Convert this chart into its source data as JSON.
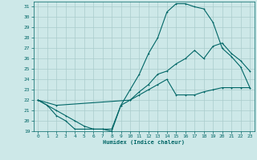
{
  "xlabel": "Humidex (Indice chaleur)",
  "background_color": "#cde8e8",
  "grid_color": "#aacccc",
  "line_color": "#006666",
  "xlim": [
    -0.5,
    23.5
  ],
  "ylim": [
    19,
    31.5
  ],
  "yticks": [
    19,
    20,
    21,
    22,
    23,
    24,
    25,
    26,
    27,
    28,
    29,
    30,
    31
  ],
  "xticks": [
    0,
    1,
    2,
    3,
    4,
    5,
    6,
    7,
    8,
    9,
    10,
    11,
    12,
    13,
    14,
    15,
    16,
    17,
    18,
    19,
    20,
    21,
    22,
    23
  ],
  "curve1_x": [
    0,
    1,
    2,
    3,
    4,
    5,
    6,
    7,
    8,
    9,
    10,
    11,
    12,
    13,
    14,
    15,
    16,
    17,
    18,
    19,
    20,
    21,
    22,
    23
  ],
  "curve1_y": [
    22.0,
    21.5,
    20.5,
    20.0,
    19.2,
    19.2,
    19.2,
    19.2,
    19.0,
    21.5,
    22.0,
    22.5,
    23.0,
    23.5,
    24.0,
    22.5,
    22.5,
    22.5,
    22.8,
    23.0,
    23.2,
    23.2,
    23.2,
    23.2
  ],
  "curve2_x": [
    0,
    1,
    2,
    3,
    4,
    5,
    6,
    7,
    8,
    9,
    10,
    11,
    12,
    13,
    14,
    15,
    16,
    17,
    18,
    19,
    20,
    21,
    22,
    23
  ],
  "curve2_y": [
    22.0,
    21.5,
    21.0,
    20.5,
    20.0,
    19.5,
    19.2,
    19.2,
    19.2,
    21.5,
    23.0,
    24.5,
    26.5,
    28.0,
    30.5,
    31.3,
    31.3,
    31.0,
    30.8,
    29.5,
    27.0,
    26.2,
    25.2,
    23.2
  ],
  "curve3_x": [
    0,
    2,
    10,
    11,
    12,
    13,
    14,
    15,
    16,
    17,
    18,
    19,
    20,
    21,
    22,
    23
  ],
  "curve3_y": [
    22.0,
    21.5,
    22.0,
    22.8,
    23.5,
    24.5,
    24.8,
    25.5,
    26.0,
    26.8,
    26.0,
    27.2,
    27.5,
    26.5,
    25.8,
    24.8
  ]
}
